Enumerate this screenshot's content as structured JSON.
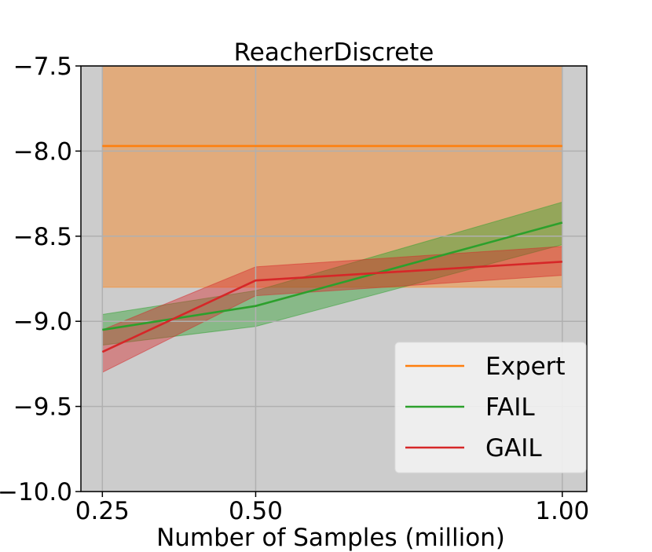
{
  "chart_data": {
    "type": "line",
    "title": "ReacherDiscrete",
    "xlabel": "Number of Samples (million)",
    "ylabel": "",
    "x": [
      0.25,
      0.5,
      1.0
    ],
    "x_ticks": [
      0.25,
      0.5,
      1.0
    ],
    "x_tick_labels": [
      "0.25",
      "0.50",
      "1.00"
    ],
    "y_ticks": [
      -10.0,
      -9.5,
      -9.0,
      -8.5,
      -8.0,
      -7.5
    ],
    "y_tick_labels": [
      "−10.0",
      "−9.5",
      "−9.0",
      "−8.5",
      "−8.0",
      "−7.5"
    ],
    "xlim": [
      0.215,
      1.04
    ],
    "ylim": [
      -10.0,
      -7.5
    ],
    "grid": true,
    "background_color": "#cccccc",
    "legend_position": "lower-right",
    "series": [
      {
        "name": "Expert",
        "color": "#ff7f0e",
        "values": [
          -7.97,
          -7.97,
          -7.97
        ],
        "band_lower": [
          -8.8,
          -8.8,
          -8.8
        ],
        "band_upper": [
          -7.5,
          -7.5,
          -7.5
        ]
      },
      {
        "name": "FAIL",
        "color": "#2ca02c",
        "values": [
          -9.05,
          -8.91,
          -8.42
        ],
        "band_lower": [
          -9.14,
          -9.03,
          -8.55
        ],
        "band_upper": [
          -8.96,
          -8.82,
          -8.3
        ]
      },
      {
        "name": "GAIL",
        "color": "#d62728",
        "values": [
          -9.18,
          -8.76,
          -8.65
        ],
        "band_lower": [
          -9.3,
          -8.85,
          -8.73
        ],
        "band_upper": [
          -9.05,
          -8.68,
          -8.56
        ]
      }
    ]
  }
}
